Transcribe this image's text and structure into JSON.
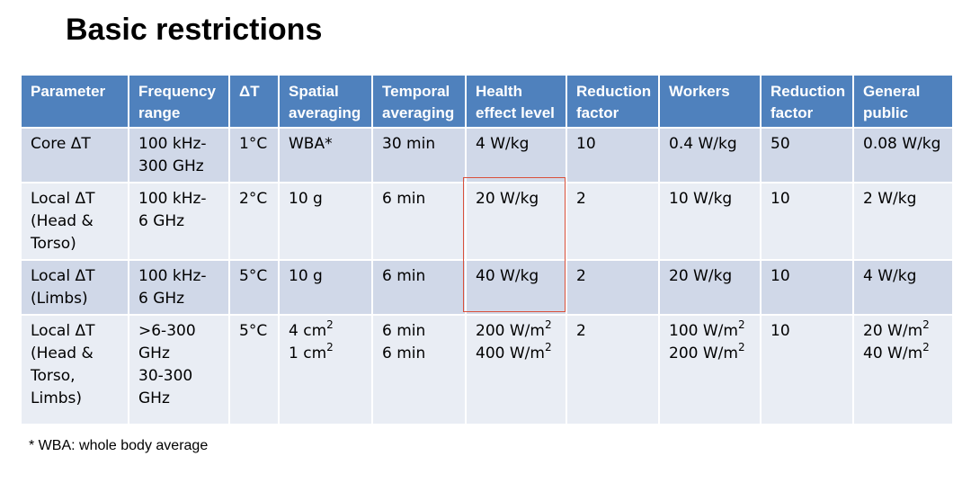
{
  "slide": {
    "title": "Basic restrictions",
    "footnote": "* WBA: whole body average",
    "highlight_color": "#d9503a"
  },
  "table": {
    "header_color": "#4f81bd",
    "row_colors": [
      "#d0d8e8",
      "#e9edf4"
    ],
    "headers": [
      [
        "Parameter"
      ],
      [
        "Frequency",
        "range"
      ],
      [
        "ΔT"
      ],
      [
        "Spatial",
        "averaging"
      ],
      [
        "Temporal",
        "averaging"
      ],
      [
        "Health",
        "effect level"
      ],
      [
        "Reduction",
        "factor"
      ],
      [
        "Workers"
      ],
      [
        "Reduction",
        "factor"
      ],
      [
        "General",
        "public"
      ]
    ],
    "rows": [
      [
        [
          {
            "t": "Core ΔT"
          }
        ],
        [
          {
            "t": "100 kHz-"
          },
          {
            "t": "300 GHz"
          }
        ],
        [
          {
            "t": "1°C"
          }
        ],
        [
          {
            "t": "WBA*"
          }
        ],
        [
          {
            "t": "30 min"
          }
        ],
        [
          {
            "t": "4 W/kg"
          }
        ],
        [
          {
            "t": "10"
          }
        ],
        [
          {
            "t": "0.4 W/kg"
          }
        ],
        [
          {
            "t": "50"
          }
        ],
        [
          {
            "t": "0.08 W/kg"
          }
        ]
      ],
      [
        [
          {
            "t": "Local ΔT"
          },
          {
            "t": "(Head  &"
          },
          {
            "t": "Torso)"
          }
        ],
        [
          {
            "t": "100 kHz-"
          },
          {
            "t": "6 GHz"
          }
        ],
        [
          {
            "t": "2°C"
          }
        ],
        [
          {
            "t": "10 g"
          }
        ],
        [
          {
            "t": "6 min"
          }
        ],
        [
          {
            "t": "20 W/kg"
          }
        ],
        [
          {
            "t": "2"
          }
        ],
        [
          {
            "t": "10 W/kg"
          }
        ],
        [
          {
            "t": "10"
          }
        ],
        [
          {
            "t": "2 W/kg"
          }
        ]
      ],
      [
        [
          {
            "t": "Local ΔT"
          },
          {
            "t": "(Limbs)"
          }
        ],
        [
          {
            "t": "100 kHz-"
          },
          {
            "t": "6 GHz"
          }
        ],
        [
          {
            "t": "5°C"
          }
        ],
        [
          {
            "t": "10 g"
          }
        ],
        [
          {
            "t": "6 min"
          }
        ],
        [
          {
            "t": "40 W/kg"
          }
        ],
        [
          {
            "t": "2"
          }
        ],
        [
          {
            "t": "20 W/kg"
          }
        ],
        [
          {
            "t": "10"
          }
        ],
        [
          {
            "t": "4 W/kg"
          }
        ]
      ],
      [
        [
          {
            "t": "Local ΔT"
          },
          {
            "t": "(Head &"
          },
          {
            "t": "Torso,"
          },
          {
            "t": "Limbs)"
          }
        ],
        [
          {
            "t": ">6-300"
          },
          {
            "t": "GHz"
          },
          {
            "t": "30-300"
          },
          {
            "t": "GHz"
          }
        ],
        [
          {
            "t": "5°C"
          }
        ],
        [
          {
            "t": "4 cm",
            "sup": "2"
          },
          {
            "t": "1 cm",
            "sup": "2"
          }
        ],
        [
          {
            "t": "6 min"
          },
          {
            "t": "6 min"
          }
        ],
        [
          {
            "t": "200 W/m",
            "sup": "2"
          },
          {
            "t": "400 W/m",
            "sup": "2"
          }
        ],
        [
          {
            "t": "2"
          }
        ],
        [
          {
            "t": "100 W/m",
            "sup": "2"
          },
          {
            "t": "200 W/m",
            "sup": "2"
          }
        ],
        [
          {
            "t": "10"
          }
        ],
        [
          {
            "t": "20 W/m",
            "sup": "2"
          },
          {
            "t": "40 W/m",
            "sup": "2"
          }
        ]
      ]
    ]
  }
}
